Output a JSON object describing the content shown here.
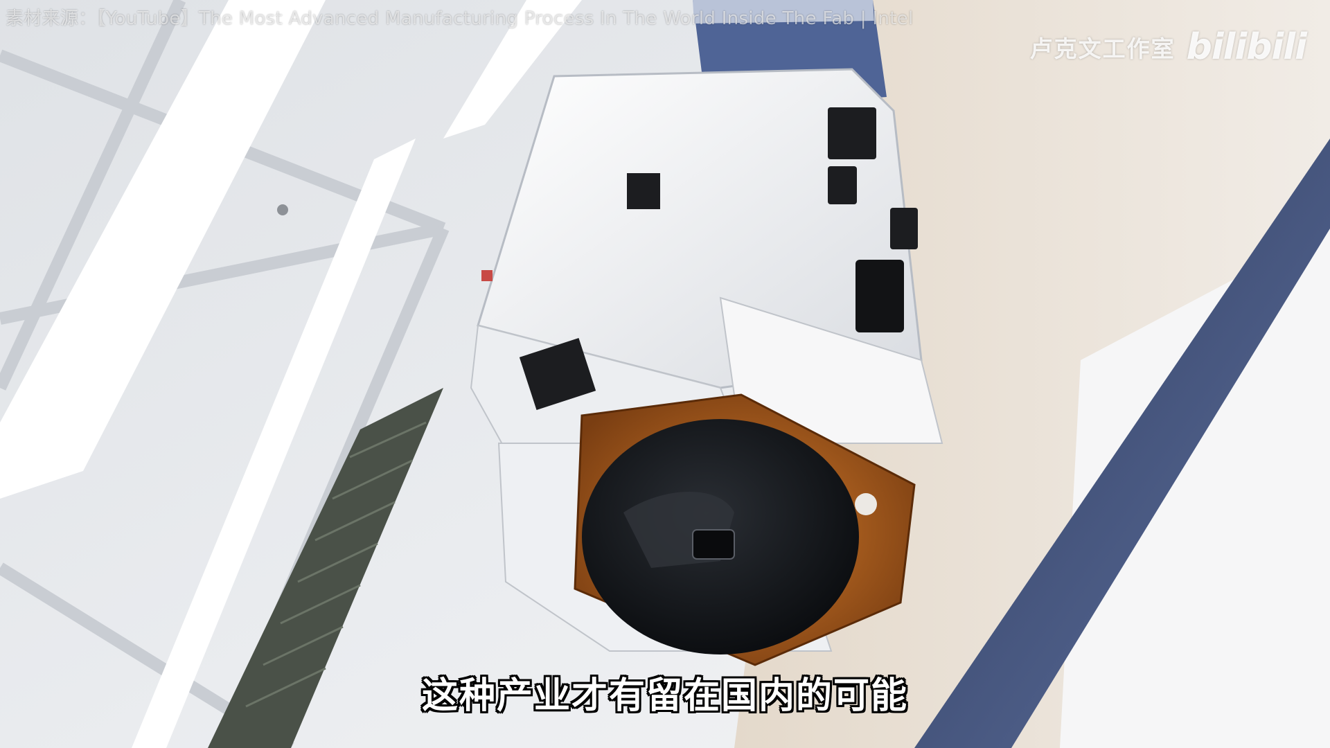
{
  "source_caption": "素材来源：【YouTube】The Most Advanced Manufacturing Process In The World Inside The Fab | Intel",
  "watermark": {
    "studio": "卢克文工作室",
    "logo": "bilibili"
  },
  "subtitle": "这种产业才有留在国内的可能",
  "colors": {
    "ceiling": "#e9ebee",
    "rail_blue": "#4b5f8f",
    "vehicle_white": "#f3f4f6",
    "pod_orange": "#b5651d",
    "wafer_dark": "#141619"
  }
}
